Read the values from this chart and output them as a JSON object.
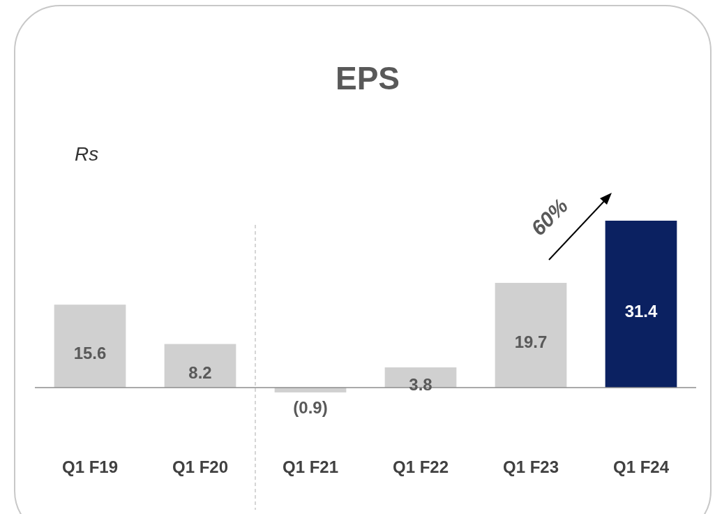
{
  "chart_data": {
    "type": "bar",
    "title": "EPS",
    "annotations": [
      "Rs",
      "60%"
    ],
    "categories": [
      "Q1 F19",
      "Q1 F20",
      "Q1 F21",
      "Q1 F22",
      "Q1 F23",
      "Q1 F24"
    ],
    "values": [
      15.6,
      8.2,
      -0.9,
      3.8,
      19.7,
      31.4
    ],
    "colors": [
      "#d0d0d0",
      "#d0d0d0",
      "#d0d0d0",
      "#d0d0d0",
      "#d0d0d0",
      "#0b2161"
    ],
    "value_labels": [
      "15.6",
      "8.2",
      "(0.9)",
      "3.8",
      "19.7",
      "31.4"
    ]
  }
}
